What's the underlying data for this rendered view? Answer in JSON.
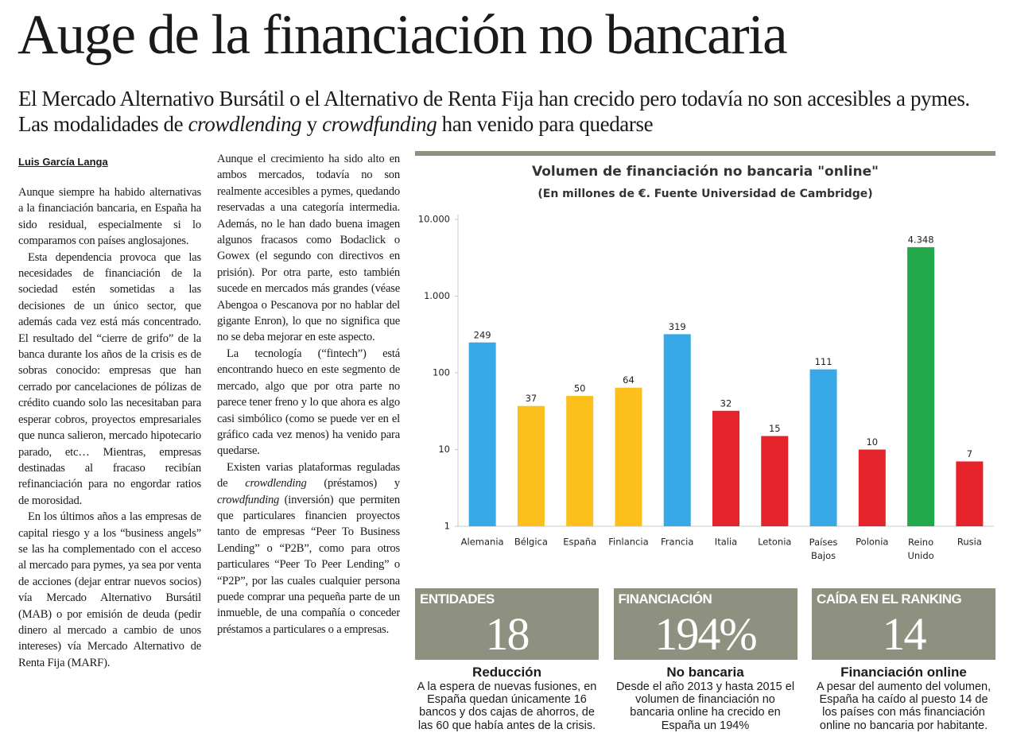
{
  "headline": "Auge de la financiación no bancaria",
  "subtitle": [
    {
      "text": "El Mercado Alternativo Bursátil o el Alternativo de Renta Fija han crecido pero todavía no son accesibles a pymes. Las modalidades de "
    },
    {
      "text": "crowdlending",
      "italic": true
    },
    {
      "text": " y "
    },
    {
      "text": "crowdfunding",
      "italic": true
    },
    {
      "text": " han venido para quedarse"
    }
  ],
  "byline": "Luis García Langa",
  "columns": [
    [
      [
        {
          "text": "Aunque siempre ha habido alternativas a la financiación bancaria, en España ha sido residual, especialmente si lo comparamos con países anglosajones."
        }
      ],
      [
        {
          "text": "Esta dependencia provoca que las necesidades de financiación de la sociedad estén sometidas a las decisiones de un único sector, que además cada vez está más concentrado. El resultado del “cierre de grifo” de la banca durante los años de la crisis es de sobras conocido: empresas que han cerrado por cancelaciones de pólizas de crédito cuando solo las necesitaban para esperar cobros, proyectos empresariales que nunca salieron, mercado hipotecario parado, etc… Mientras, empresas destinadas al fracaso recibían refinanciación para no engordar ratios de morosidad."
        }
      ],
      [
        {
          "text": "En los últimos años a las empresas de capital riesgo y a los “business angels” se las ha complementado con el acceso al mercado para pymes, ya sea por venta de acciones (dejar entrar nuevos socios) vía Mercado Alternativo Bursátil (MAB) o por emisión de deuda (pedir dinero al mercado a cambio de unos intereses) vía Mercado Alternativo de Renta Fija (MARF)."
        }
      ]
    ],
    [
      [
        {
          "text": "Aunque el crecimiento ha sido alto en ambos mercados, todavía no son realmente accesibles a pymes, quedando reservadas a una categoría intermedia. Además, no le han dado buena imagen algunos fracasos como Bodaclick o Gowex (el segundo con directivos en prisión). Por otra parte, esto también sucede en mercados más grandes (véase Abengoa o Pescanova por no hablar del gigante Enron), lo que no significa que no se deba mejorar en este aspecto."
        }
      ],
      [
        {
          "text": "La tecnología (“fintech”) está encontrando hueco en este segmento de mercado, algo que por otra parte no parece tener freno y lo que ahora es algo casi simbólico (como se puede ver en el gráfico cada vez menos) ha venido para quedarse."
        }
      ],
      [
        {
          "text": "Existen varias plataformas reguladas de "
        },
        {
          "text": "crowdlending",
          "italic": true
        },
        {
          "text": " (préstamos) y "
        },
        {
          "text": "crowdfunding",
          "italic": true
        },
        {
          "text": " (inversión) que permiten que particulares financien proyectos tanto de empresas “Peer To Business Lending” o “P2B”, como para otros particulares “Peer To Peer Lending” o “P2P”, por las cuales cualquier persona puede comprar una pequeña parte de un inmueble, de una compañía o conceder préstamos a particulares o a empresas."
        }
      ]
    ]
  ],
  "chart_data": {
    "type": "bar",
    "title": "Volumen de financiación no bancaria \"online\"",
    "subtitle": "(En millones de €. Fuente Universidad de Cambridge)",
    "categories": [
      "Alemania",
      "Bélgica",
      "España",
      "Finlancia",
      "Francia",
      "Italia",
      "Letonia",
      "Países Bajos",
      "Polonia",
      "Reino Unido",
      "Rusia"
    ],
    "values": [
      249,
      37,
      50,
      64,
      319,
      32,
      15,
      111,
      10,
      4348,
      7
    ],
    "value_labels": [
      "249",
      "37",
      "50",
      "64",
      "319",
      "32",
      "15",
      "111",
      "10",
      "4.348",
      "7"
    ],
    "colors": [
      "#38a9e6",
      "#fcbf1c",
      "#fcbf1c",
      "#fcbf1c",
      "#38a9e6",
      "#e5232b",
      "#e5232b",
      "#38a9e6",
      "#e5232b",
      "#21a94c",
      "#e5232b"
    ],
    "log_scale": true,
    "ylim": [
      1,
      10000
    ],
    "yticks": [
      1,
      10,
      100,
      {
        "value": 1000,
        "label": "1.000"
      },
      {
        "value": 10000,
        "label": "10.000"
      }
    ]
  },
  "stats": [
    {
      "label": "ENTIDADES",
      "number": 18,
      "title": "Reducción",
      "text": "A la espera de nuevas fusiones, en España quedan únicamente 16 bancos y dos cajas de ahorros, de las 60 que había antes de la crisis."
    },
    {
      "label": "FINANCIACIÓN",
      "number": "194%",
      "title": "No bancaria",
      "text": "Desde el año 2013 y hasta 2015 el volumen de financiación no bancaria online ha crecido en España un 194%"
    },
    {
      "label": "CAÍDA EN EL RANKING",
      "number": 14,
      "title": "Financiación online",
      "text": "A pesar del aumento del volumen, España ha caído al puesto 14 de los países con más financiación online no bancaria por habitante."
    }
  ]
}
